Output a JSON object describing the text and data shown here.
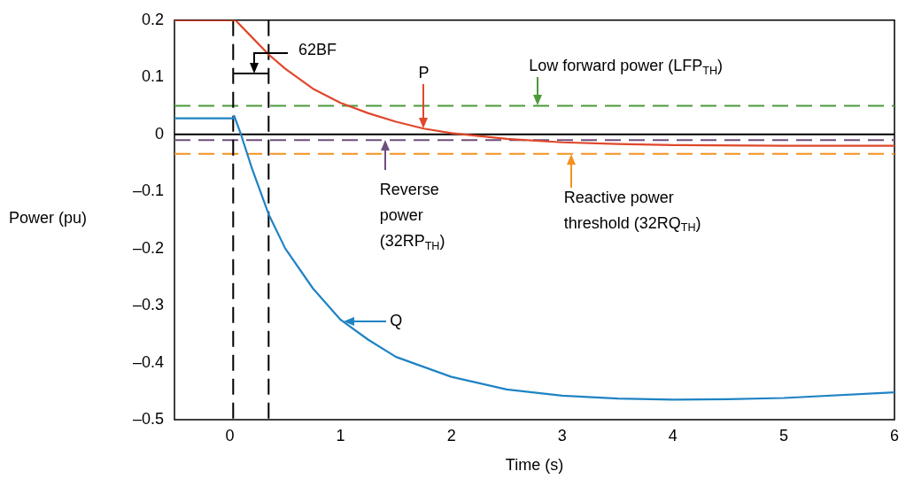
{
  "chart_data": {
    "type": "line",
    "xlabel": "Time (s)",
    "ylabel": "Power (pu)",
    "xlim": [
      -0.5,
      6
    ],
    "xticks": [
      0,
      1,
      2,
      3,
      4,
      5,
      6
    ],
    "ylim": [
      -0.5,
      0.2
    ],
    "yticks": [
      {
        "value": 0.2,
        "label": "0.2"
      },
      {
        "value": 0.1,
        "label": "0.1"
      },
      {
        "value": 0,
        "label": "0"
      },
      {
        "value": -0.1,
        "label": "–0.1"
      },
      {
        "value": -0.2,
        "label": "–0.2"
      },
      {
        "value": -0.3,
        "label": "–0.3"
      },
      {
        "value": -0.4,
        "label": "–0.4"
      },
      {
        "value": -0.5,
        "label": "–0.5"
      }
    ],
    "grid": false,
    "legend": false,
    "marker": "none",
    "line_style": "solid",
    "series": [
      {
        "color": "#e0472b",
        "x": [
          -0.5,
          0.05,
          0.2,
          0.35,
          0.5,
          0.75,
          1,
          1.25,
          1.5,
          1.75,
          2,
          2.5,
          3,
          3.5,
          4,
          5,
          6
        ],
        "values": [
          0.2,
          0.2,
          0.17,
          0.14,
          0.115,
          0.08,
          0.055,
          0.037,
          0.022,
          0.01,
          0.002,
          -0.008,
          -0.014,
          -0.017,
          -0.019,
          -0.02,
          -0.02
        ]
      },
      {
        "color": "#1f83c4",
        "x": [
          -0.5,
          0.03,
          0.04,
          0.1,
          0.2,
          0.35,
          0.5,
          0.75,
          1,
          1.25,
          1.5,
          2,
          2.5,
          3,
          3.5,
          4,
          4.5,
          5,
          6
        ],
        "values": [
          0.028,
          0.028,
          0.032,
          0.0,
          -0.06,
          -0.14,
          -0.2,
          -0.27,
          -0.325,
          -0.36,
          -0.39,
          -0.425,
          -0.447,
          -0.458,
          -0.463,
          -0.465,
          -0.464,
          -0.462,
          -0.452
        ]
      }
    ],
    "ref_lines": [
      {
        "axis": "y",
        "value": 0,
        "color": "#000000",
        "line_style": "solid"
      },
      {
        "axis": "y",
        "value": 0.05,
        "color": "#4a9a3a",
        "line_style": "dashed"
      },
      {
        "axis": "y",
        "value": -0.01,
        "color": "#6f4e7c",
        "line_style": "dashed"
      },
      {
        "axis": "y",
        "value": -0.034,
        "color": "#f39220",
        "line_style": "dashed"
      },
      {
        "axis": "x",
        "value": 0.03,
        "color": "#000000",
        "line_style": "dashed"
      },
      {
        "axis": "x",
        "value": 0.35,
        "color": "#000000",
        "line_style": "dashed"
      }
    ],
    "annotations": [
      "62BF",
      {
        "text": "P",
        "x": 1.75,
        "y": 0.01
      },
      {
        "text": "Low forward power (LFP$_{TH}$)",
        "x": 2.78,
        "y": 0.05
      },
      {
        "text": "Reverse power (32RP$_{TH}$)",
        "x": 1.4,
        "y": -0.01
      },
      {
        "text": "Reactive power threshold (32RQ$_{TH}$)",
        "x": 3.08,
        "y": -0.034
      },
      {
        "text": "Q",
        "x": 1.03,
        "y": -0.328
      }
    ]
  }
}
